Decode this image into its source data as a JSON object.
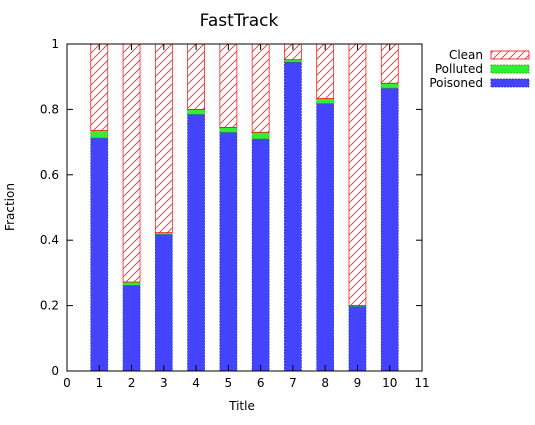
{
  "chart_data": {
    "type": "bar",
    "stacked": true,
    "title": "FastTrack",
    "xlabel": "Title",
    "ylabel": "Fraction",
    "xlim": [
      0,
      11
    ],
    "ylim": [
      0,
      1
    ],
    "xticks": [
      "0",
      "1",
      "2",
      "3",
      "4",
      "5",
      "6",
      "7",
      "8",
      "9",
      "10",
      "11"
    ],
    "yticks": [
      "0",
      "0.2",
      "0.4",
      "0.6",
      "0.8",
      "1"
    ],
    "categories": [
      1,
      2,
      3,
      4,
      5,
      6,
      7,
      8,
      9,
      10
    ],
    "legend_position": "outside-top-right",
    "grid": false,
    "series": [
      {
        "name": "Clean",
        "color": "#ff0000",
        "fill": "hatched",
        "values": [
          0.265,
          0.728,
          0.577,
          0.2,
          0.255,
          0.27,
          0.048,
          0.167,
          0.8,
          0.12
        ]
      },
      {
        "name": "Polluted",
        "color": "#33ee33",
        "fill": "solid",
        "values": [
          0.022,
          0.01,
          0.005,
          0.015,
          0.015,
          0.02,
          0.007,
          0.015,
          0.002,
          0.015
        ]
      },
      {
        "name": "Poisoned",
        "color": "#4444ff",
        "fill": "solid",
        "values": [
          0.713,
          0.262,
          0.418,
          0.785,
          0.73,
          0.71,
          0.945,
          0.818,
          0.198,
          0.865
        ]
      }
    ]
  }
}
